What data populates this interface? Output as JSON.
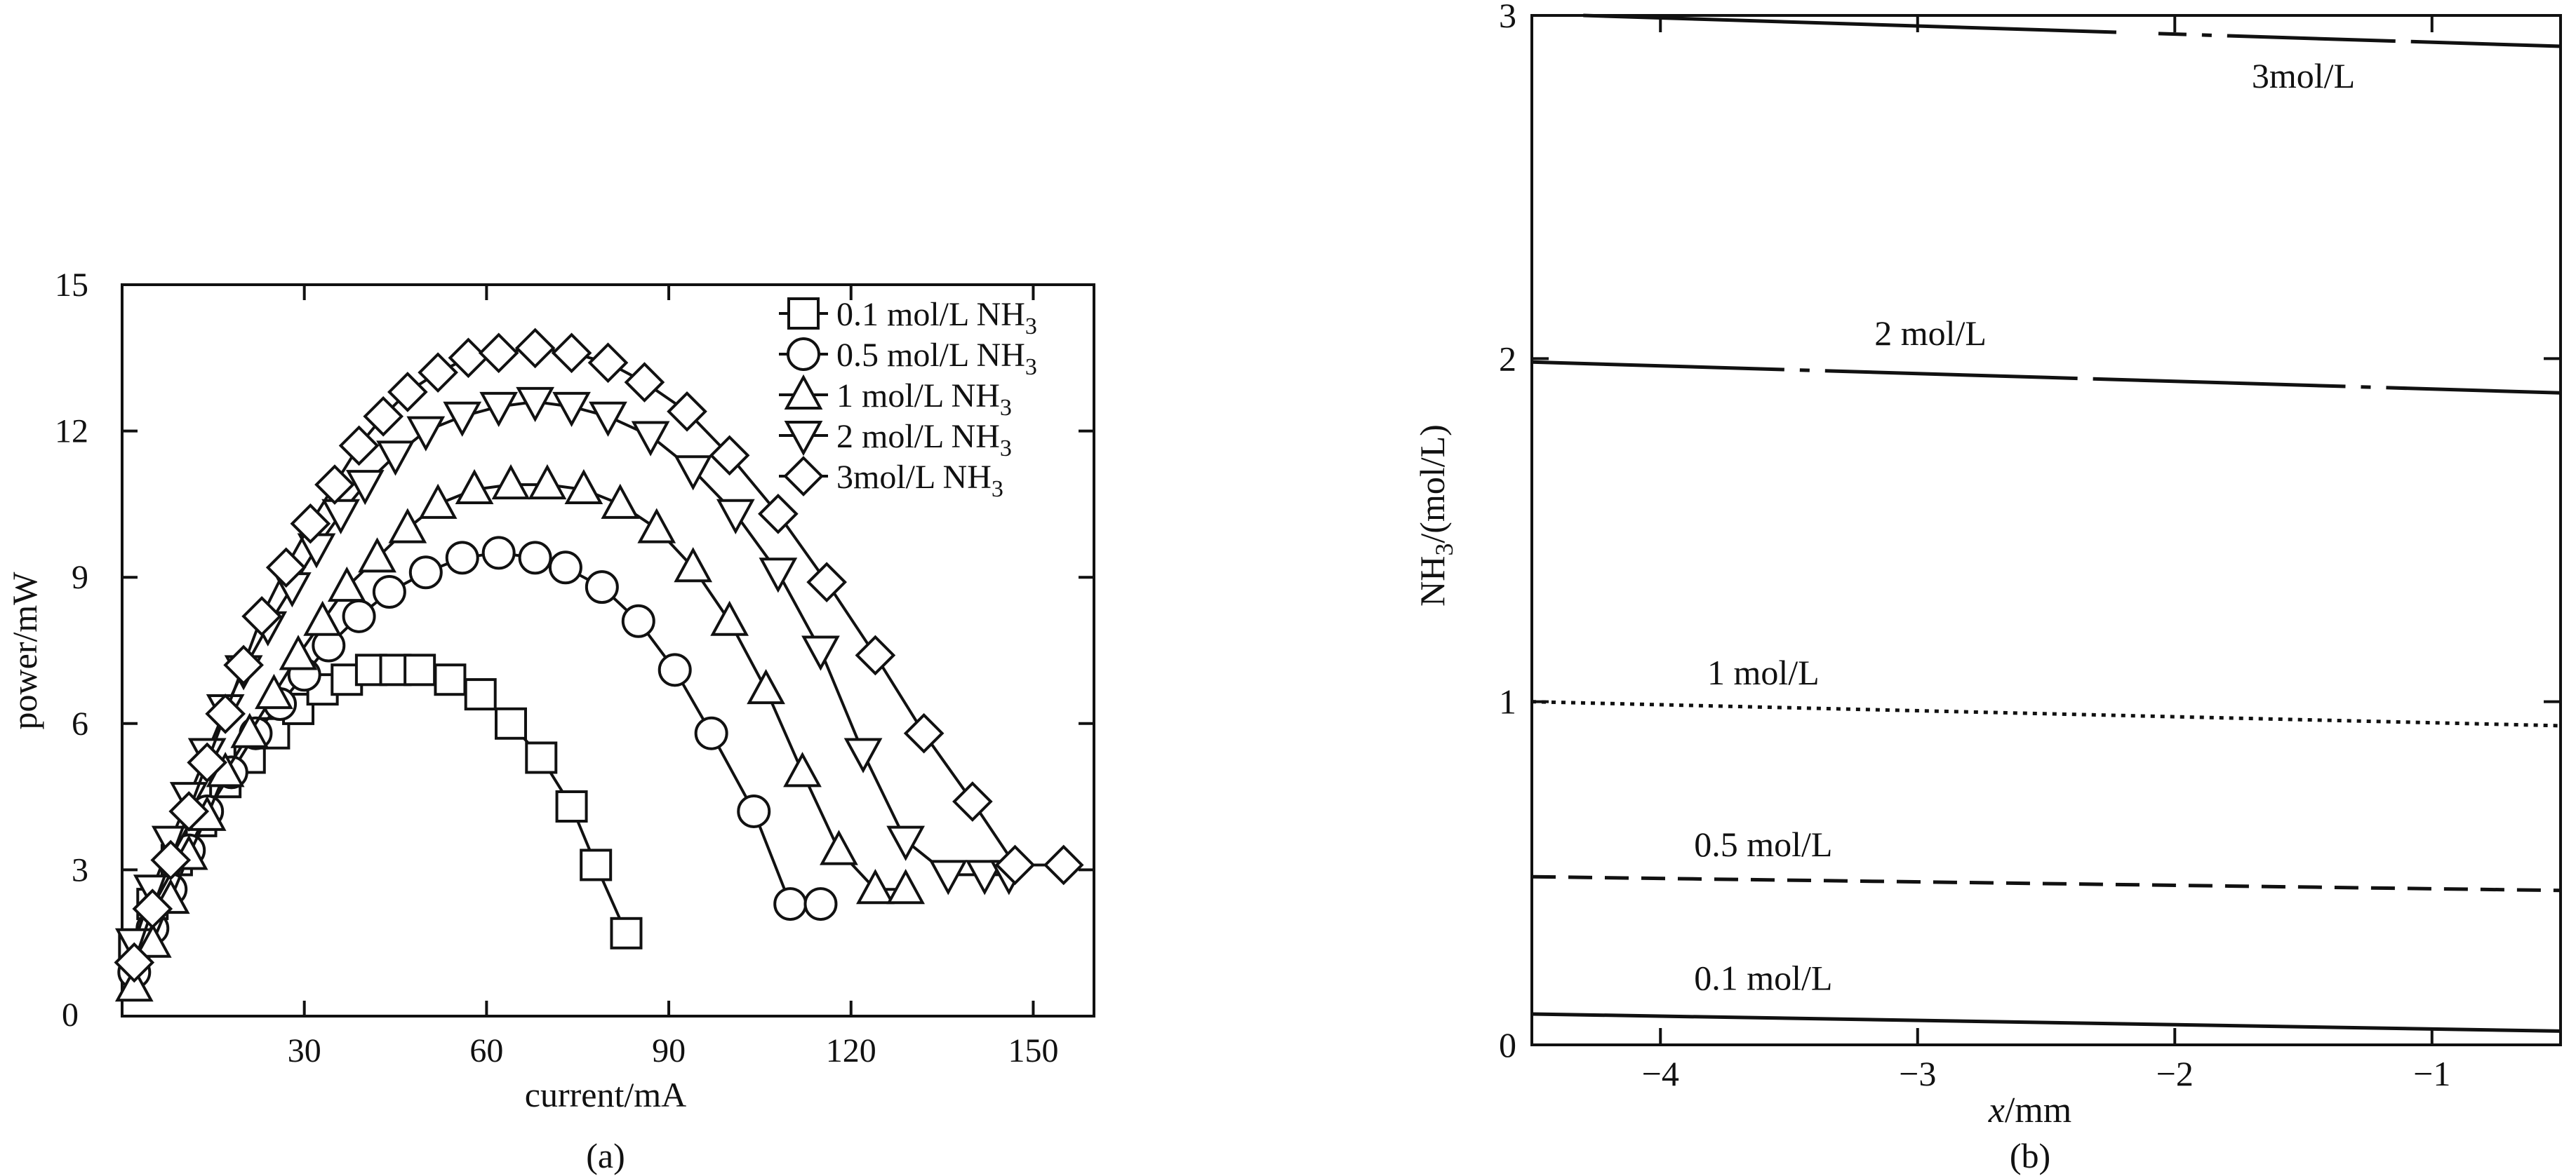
{
  "chart_data": [
    {
      "type": "line",
      "panel_label": "(a)",
      "xlabel": "current/mA",
      "ylabel": "power/mW",
      "xlim": [
        0,
        160
      ],
      "ylim": [
        0,
        15
      ],
      "xticks": [
        30,
        60,
        90,
        120,
        150
      ],
      "yticks": [
        3,
        6,
        9,
        12,
        15
      ],
      "origin_label": "0",
      "legend_position": "top-right",
      "series": [
        {
          "name": "0.1 mol/L NH",
          "name_sub": "3",
          "marker": "square",
          "x": [
            2,
            5,
            9,
            13,
            17,
            21,
            25,
            29,
            33,
            37,
            41,
            45,
            49,
            54,
            59,
            64,
            69,
            74,
            78,
            83
          ],
          "y": [
            1.4,
            2.3,
            3.2,
            4.0,
            4.8,
            5.3,
            5.8,
            6.3,
            6.7,
            6.9,
            7.1,
            7.1,
            7.1,
            6.9,
            6.6,
            6.0,
            5.3,
            4.3,
            3.1,
            1.7
          ]
        },
        {
          "name": "0.5 mol/L NH",
          "name_sub": "3",
          "marker": "circle",
          "x": [
            2,
            5,
            8,
            11,
            14,
            18,
            22,
            26,
            30,
            34,
            39,
            44,
            50,
            56,
            62,
            68,
            73,
            79,
            85,
            91,
            97,
            104,
            110,
            115
          ],
          "y": [
            0.9,
            1.8,
            2.6,
            3.4,
            4.2,
            5.0,
            5.8,
            6.4,
            7.0,
            7.6,
            8.2,
            8.7,
            9.1,
            9.4,
            9.5,
            9.4,
            9.2,
            8.8,
            8.1,
            7.1,
            5.8,
            4.2,
            2.3,
            2.3
          ]
        },
        {
          "name": "1 mol/L NH",
          "name_sub": "3",
          "marker": "triangle-up",
          "x": [
            2,
            5,
            8,
            11,
            14,
            17,
            21,
            25,
            29,
            33,
            37,
            42,
            47,
            52,
            58,
            64,
            70,
            76,
            82,
            88,
            94,
            100,
            106,
            112,
            118,
            124,
            129
          ],
          "y": [
            0.6,
            1.5,
            2.4,
            3.3,
            4.1,
            5.0,
            5.8,
            6.6,
            7.4,
            8.1,
            8.8,
            9.4,
            10.0,
            10.5,
            10.8,
            10.9,
            10.9,
            10.8,
            10.5,
            10.0,
            9.2,
            8.1,
            6.7,
            5.0,
            3.4,
            2.6,
            2.6
          ]
        },
        {
          "name": "2 mol/L NH",
          "name_sub": "3",
          "marker": "triangle-down",
          "x": [
            2,
            5,
            8,
            11,
            14,
            17,
            20,
            24,
            28,
            32,
            36,
            40,
            45,
            50,
            56,
            62,
            68,
            74,
            80,
            87,
            94,
            101,
            108,
            115,
            122,
            129,
            136,
            142,
            146
          ],
          "y": [
            1.5,
            2.6,
            3.6,
            4.5,
            5.4,
            6.3,
            7.1,
            8.0,
            8.8,
            9.6,
            10.3,
            10.9,
            11.5,
            12.0,
            12.3,
            12.5,
            12.6,
            12.5,
            12.3,
            11.9,
            11.2,
            10.3,
            9.1,
            7.5,
            5.4,
            3.6,
            2.9,
            2.9,
            2.9
          ]
        },
        {
          "name": "3mol/L NH",
          "name_sub": "3",
          "marker": "diamond",
          "x": [
            2,
            5,
            8,
            11,
            14,
            17,
            20,
            23,
            27,
            31,
            35,
            39,
            43,
            47,
            52,
            57,
            62,
            68,
            74,
            80,
            86,
            93,
            100,
            108,
            116,
            124,
            132,
            140,
            147,
            155
          ],
          "y": [
            1.1,
            2.2,
            3.2,
            4.2,
            5.2,
            6.2,
            7.2,
            8.2,
            9.2,
            10.1,
            10.9,
            11.7,
            12.3,
            12.8,
            13.2,
            13.5,
            13.6,
            13.7,
            13.6,
            13.4,
            13.0,
            12.4,
            11.5,
            10.3,
            8.9,
            7.4,
            5.8,
            4.4,
            3.1,
            3.1
          ]
        }
      ]
    },
    {
      "type": "line",
      "panel_label": "(b)",
      "xlabel_var": "x",
      "xlabel_unit": "/mm",
      "ylabel_pre": "NH",
      "ylabel_sub": "3",
      "ylabel_post": "/(mol/L)",
      "xlim": [
        -4.5,
        -0.5
      ],
      "ylim": [
        0,
        3
      ],
      "xticks": [
        -4,
        -3,
        -2,
        -1
      ],
      "xtick_labels": [
        "−4",
        "−3",
        "−2",
        "−1"
      ],
      "yticks": [
        0,
        1,
        2,
        3
      ],
      "series": [
        {
          "label": "3mol/L",
          "style": "dash-dot-late",
          "x": [
            -4.3,
            -0.5
          ],
          "y": [
            3.0,
            2.91
          ],
          "label_at": [
            -1.5,
            2.79
          ]
        },
        {
          "label": "2 mol/L",
          "style": "dash-dot",
          "x": [
            -4.5,
            -0.5
          ],
          "y": [
            1.99,
            1.9
          ],
          "label_at": [
            -2.95,
            2.04
          ]
        },
        {
          "label": "1 mol/L",
          "style": "dotted",
          "x": [
            -4.5,
            -0.5
          ],
          "y": [
            1.0,
            0.93
          ],
          "label_at": [
            -3.6,
            1.05
          ]
        },
        {
          "label": "0.5 mol/L",
          "style": "dashed",
          "x": [
            -4.5,
            -0.5
          ],
          "y": [
            0.49,
            0.45
          ],
          "label_at": [
            -3.6,
            0.55
          ]
        },
        {
          "label": "0.1 mol/L",
          "style": "solid",
          "x": [
            -4.5,
            -0.5
          ],
          "y": [
            0.09,
            0.04
          ],
          "label_at": [
            -3.6,
            0.16
          ]
        }
      ]
    }
  ]
}
